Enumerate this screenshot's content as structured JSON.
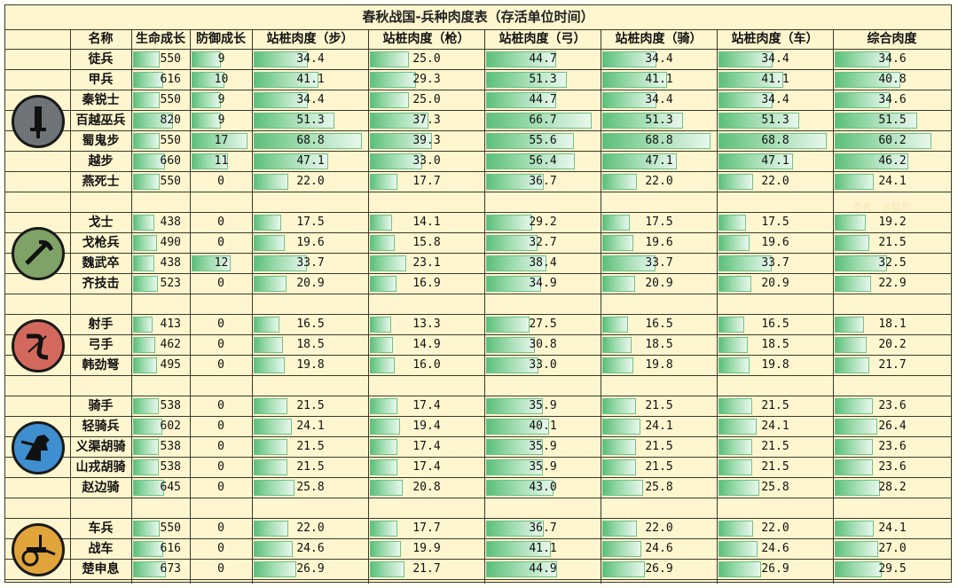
{
  "title": "春秋战国-兵种肉度表（存活单位时间）",
  "headers": [
    "名称",
    "生命成长",
    "防御成长",
    "站桩肉度（步）",
    "站桩肉度（枪）",
    "站桩肉度（弓）",
    "站桩肉度（骑）",
    "站桩肉度（车）",
    "综合肉度"
  ],
  "watermark": "作者：凶猛的",
  "bar_max": {
    "hp": 820,
    "def": 17,
    "meat": 70
  },
  "groups": [
    {
      "icon": "sword-icon",
      "color": "#6e7478",
      "rows": [
        {
          "name": "徒兵",
          "hp": "550",
          "def": "9",
          "v": [
            "34.4",
            "25.0",
            "44.7",
            "34.4",
            "34.4",
            "34.6"
          ]
        },
        {
          "name": "甲兵",
          "hp": "616",
          "def": "10",
          "v": [
            "41.1",
            "29.3",
            "51.3",
            "41.1",
            "41.1",
            "40.8"
          ]
        },
        {
          "name": "秦锐士",
          "hp": "550",
          "def": "9",
          "v": [
            "34.4",
            "25.0",
            "44.7",
            "34.4",
            "34.4",
            "34.6"
          ]
        },
        {
          "name": "百越巫兵",
          "hp": "820",
          "def": "9",
          "v": [
            "51.3",
            "37.3",
            "66.7",
            "51.3",
            "51.3",
            "51.5"
          ]
        },
        {
          "name": "蜀鬼步",
          "hp": "550",
          "def": "17",
          "v": [
            "68.8",
            "39.3",
            "55.6",
            "68.8",
            "68.8",
            "60.2"
          ]
        },
        {
          "name": "越步",
          "hp": "660",
          "def": "11",
          "v": [
            "47.1",
            "33.0",
            "56.4",
            "47.1",
            "47.1",
            "46.2"
          ]
        },
        {
          "name": "燕死士",
          "hp": "550",
          "def": "0",
          "v": [
            "22.0",
            "17.7",
            "36.7",
            "22.0",
            "22.0",
            "24.1"
          ]
        }
      ]
    },
    {
      "icon": "pickaxe-icon",
      "color": "#7fa266",
      "rows": [
        {
          "name": "戈士",
          "hp": "438",
          "def": "0",
          "v": [
            "17.5",
            "14.1",
            "29.2",
            "17.5",
            "17.5",
            "19.2"
          ]
        },
        {
          "name": "戈枪兵",
          "hp": "490",
          "def": "0",
          "v": [
            "19.6",
            "15.8",
            "32.7",
            "19.6",
            "19.6",
            "21.5"
          ]
        },
        {
          "name": "魏武卒",
          "hp": "438",
          "def": "12",
          "v": [
            "33.7",
            "23.1",
            "38.4",
            "33.7",
            "33.7",
            "32.5"
          ]
        },
        {
          "name": "齐技击",
          "hp": "523",
          "def": "0",
          "v": [
            "20.9",
            "16.9",
            "34.9",
            "20.9",
            "20.9",
            "22.9"
          ]
        }
      ]
    },
    {
      "icon": "bow-icon",
      "color": "#d2695c",
      "rows": [
        {
          "name": "射手",
          "hp": "413",
          "def": "0",
          "v": [
            "16.5",
            "13.3",
            "27.5",
            "16.5",
            "16.5",
            "18.1"
          ]
        },
        {
          "name": "弓手",
          "hp": "462",
          "def": "0",
          "v": [
            "18.5",
            "14.9",
            "30.8",
            "18.5",
            "18.5",
            "20.2"
          ]
        },
        {
          "name": "韩劲弩",
          "hp": "495",
          "def": "0",
          "v": [
            "19.8",
            "16.0",
            "33.0",
            "19.8",
            "19.8",
            "21.7"
          ]
        }
      ]
    },
    {
      "icon": "horse-icon",
      "color": "#3f8fd0",
      "rows": [
        {
          "name": "骑手",
          "hp": "538",
          "def": "0",
          "v": [
            "21.5",
            "17.4",
            "35.9",
            "21.5",
            "21.5",
            "23.6"
          ]
        },
        {
          "name": "轻骑兵",
          "hp": "602",
          "def": "0",
          "v": [
            "24.1",
            "19.4",
            "40.1",
            "24.1",
            "24.1",
            "26.4"
          ]
        },
        {
          "name": "义渠胡骑",
          "hp": "538",
          "def": "0",
          "v": [
            "21.5",
            "17.4",
            "35.9",
            "21.5",
            "21.5",
            "23.6"
          ]
        },
        {
          "name": "山戎胡骑",
          "hp": "538",
          "def": "0",
          "v": [
            "21.5",
            "17.4",
            "35.9",
            "21.5",
            "21.5",
            "23.6"
          ]
        },
        {
          "name": "赵边骑",
          "hp": "645",
          "def": "0",
          "v": [
            "25.8",
            "20.8",
            "43.0",
            "25.8",
            "25.8",
            "28.2"
          ]
        }
      ]
    },
    {
      "icon": "chariot-icon",
      "color": "#e0a43a",
      "rows": [
        {
          "name": "车兵",
          "hp": "550",
          "def": "0",
          "v": [
            "22.0",
            "17.7",
            "36.7",
            "22.0",
            "22.0",
            "24.1"
          ]
        },
        {
          "name": "战车",
          "hp": "616",
          "def": "0",
          "v": [
            "24.6",
            "19.9",
            "41.1",
            "24.6",
            "24.6",
            "27.0"
          ]
        },
        {
          "name": "楚申息",
          "hp": "673",
          "def": "0",
          "v": [
            "26.9",
            "21.7",
            "44.9",
            "26.9",
            "26.9",
            "29.5"
          ]
        }
      ]
    }
  ]
}
